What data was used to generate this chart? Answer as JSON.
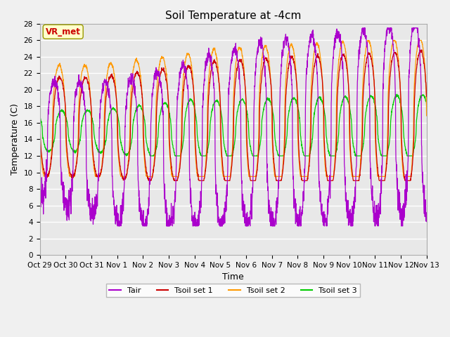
{
  "title": "Soil Temperature at -4cm",
  "xlabel": "Time",
  "ylabel": "Temperature (C)",
  "ylim": [
    0,
    28
  ],
  "yticks": [
    0,
    2,
    4,
    6,
    8,
    10,
    12,
    14,
    16,
    18,
    20,
    22,
    24,
    26,
    28
  ],
  "xtick_labels": [
    "Oct 29",
    "Oct 30",
    "Oct 31",
    "Nov 1",
    "Nov 2",
    "Nov 3",
    "Nov 4",
    "Nov 5",
    "Nov 6",
    "Nov 7",
    "Nov 8",
    "Nov 9",
    "Nov 10",
    "Nov 11",
    "Nov 12",
    "Nov 13"
  ],
  "color_tair": "#aa00cc",
  "color_tsoil1": "#cc0000",
  "color_tsoil2": "#ff9900",
  "color_tsoil3": "#00cc00",
  "label_tair": "Tair",
  "label_tsoil1": "Tsoil set 1",
  "label_tsoil2": "Tsoil set 2",
  "label_tsoil3": "Tsoil set 3",
  "annotation_text": "VR_met",
  "annotation_color": "#cc0000",
  "annotation_bg": "#ffffcc",
  "plot_bg": "#e8e8e8",
  "fig_bg": "#f0f0f0",
  "n_days": 15,
  "ppd": 144
}
